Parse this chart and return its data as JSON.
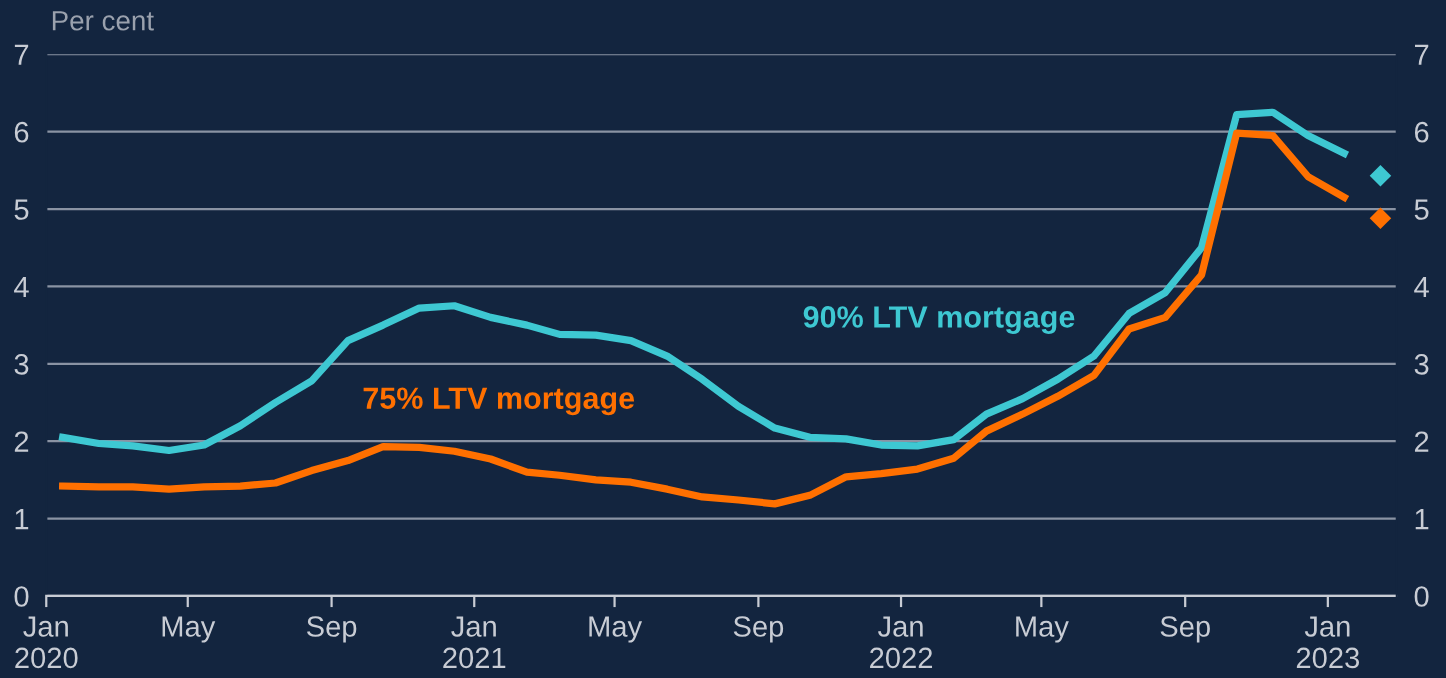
{
  "chart_data": {
    "type": "line",
    "ylabel": "Per cent",
    "x": [
      "2020-01-15",
      "2020-02-15",
      "2020-03-15",
      "2020-04-15",
      "2020-05-15",
      "2020-06-15",
      "2020-07-15",
      "2020-08-15",
      "2020-09-15",
      "2020-10-15",
      "2020-11-15",
      "2020-12-15",
      "2021-01-15",
      "2021-02-15",
      "2021-03-15",
      "2021-04-15",
      "2021-05-15",
      "2021-06-15",
      "2021-07-15",
      "2021-08-15",
      "2021-09-15",
      "2021-10-15",
      "2021-11-15",
      "2021-12-15",
      "2022-01-15",
      "2022-02-15",
      "2022-03-15",
      "2022-04-15",
      "2022-05-15",
      "2022-06-15",
      "2022-07-15",
      "2022-08-15",
      "2022-09-15",
      "2022-10-15",
      "2022-11-15",
      "2022-12-15",
      "2023-01-15"
    ],
    "series": [
      {
        "name": "90% LTV mortgage",
        "color": "#3ec8d2",
        "values": [
          2.05,
          1.97,
          1.94,
          1.88,
          1.95,
          2.2,
          2.5,
          2.78,
          3.3,
          3.5,
          3.72,
          3.75,
          3.6,
          3.5,
          3.38,
          3.37,
          3.3,
          3.1,
          2.8,
          2.45,
          2.17,
          2.05,
          2.03,
          1.95,
          1.94,
          2.02,
          2.35,
          2.55,
          2.8,
          3.1,
          3.65,
          3.92,
          4.5,
          6.22,
          6.25,
          5.95,
          5.72
        ]
      },
      {
        "name": "75% LTV mortgage",
        "color": "#ff7000",
        "values": [
          1.42,
          1.41,
          1.41,
          1.38,
          1.41,
          1.42,
          1.46,
          1.62,
          1.75,
          1.93,
          1.92,
          1.87,
          1.77,
          1.6,
          1.56,
          1.5,
          1.47,
          1.38,
          1.28,
          1.24,
          1.19,
          1.3,
          1.54,
          1.58,
          1.64,
          1.78,
          2.13,
          2.35,
          2.58,
          2.85,
          3.45,
          3.6,
          4.15,
          5.98,
          5.95,
          5.42,
          5.15
        ]
      },
      {
        "type": "scatter",
        "marker": "diamond",
        "color": "#3ec8d2",
        "x": [
          "2023-02-15"
        ],
        "values": [
          5.43
        ]
      },
      {
        "type": "scatter",
        "marker": "diamond",
        "color": "#ff7000",
        "x": [
          "2023-02-15"
        ],
        "values": [
          4.88
        ]
      }
    ],
    "xlim": [
      "2020-01-01",
      "2023-03-01"
    ],
    "xticks": [
      {
        "value": "2020-01-01",
        "label": "Jan\n2020"
      },
      {
        "value": "2020-05-01",
        "label": "May"
      },
      {
        "value": "2020-09-01",
        "label": "Sep"
      },
      {
        "value": "2021-01-01",
        "label": "Jan\n2021"
      },
      {
        "value": "2021-05-01",
        "label": "May"
      },
      {
        "value": "2021-09-01",
        "label": "Sep"
      },
      {
        "value": "2022-01-01",
        "label": "Jan\n2022"
      },
      {
        "value": "2022-05-01",
        "label": "May"
      },
      {
        "value": "2022-09-01",
        "label": "Sep"
      },
      {
        "value": "2023-01-01",
        "label": "Jan\n2023"
      }
    ],
    "ylim": [
      0,
      7
    ],
    "yticks": [
      0,
      1,
      2,
      3,
      4,
      5,
      6,
      7
    ],
    "y2lim": [
      0,
      7
    ],
    "y2ticks": [
      0,
      1,
      2,
      3,
      4,
      5,
      6,
      7
    ],
    "grid": "y"
  }
}
